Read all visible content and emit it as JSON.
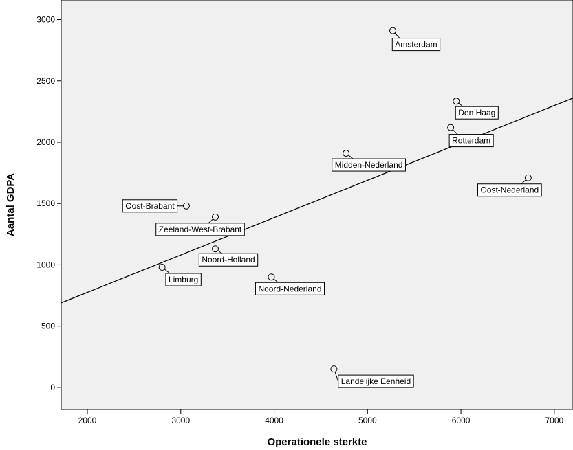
{
  "chart_data": {
    "type": "scatter",
    "title": "",
    "xlabel": "Operationele sterkte",
    "ylabel": "Aantal GDPA",
    "xlim": [
      1720,
      7200
    ],
    "ylim": [
      -180,
      3160
    ],
    "xticks": [
      2000,
      3000,
      4000,
      5000,
      6000,
      7000
    ],
    "yticks": [
      0,
      500,
      1000,
      1500,
      2000,
      2500,
      3000
    ],
    "grid": false,
    "fit_line": {
      "x": [
        1720,
        7200
      ],
      "y": [
        690,
        2360
      ]
    },
    "points": [
      {
        "label": "Amsterdam",
        "x": 5270,
        "y": 2910
      },
      {
        "label": "Den Haag",
        "x": 5950,
        "y": 2335
      },
      {
        "label": "Rotterdam",
        "x": 5890,
        "y": 2120
      },
      {
        "label": "Midden-Nederland",
        "x": 4770,
        "y": 1910
      },
      {
        "label": "Oost-Nederland",
        "x": 6720,
        "y": 1710
      },
      {
        "label": "Oost-Brabant",
        "x": 3060,
        "y": 1480
      },
      {
        "label": "Zeeland-West-Brabant",
        "x": 3370,
        "y": 1390
      },
      {
        "label": "Noord-Holland",
        "x": 3370,
        "y": 1130
      },
      {
        "label": "Limburg",
        "x": 2800,
        "y": 980
      },
      {
        "label": "Noord-Nederland",
        "x": 3970,
        "y": 900
      },
      {
        "label": "Landelijke Eenheid",
        "x": 4640,
        "y": 150
      }
    ]
  }
}
